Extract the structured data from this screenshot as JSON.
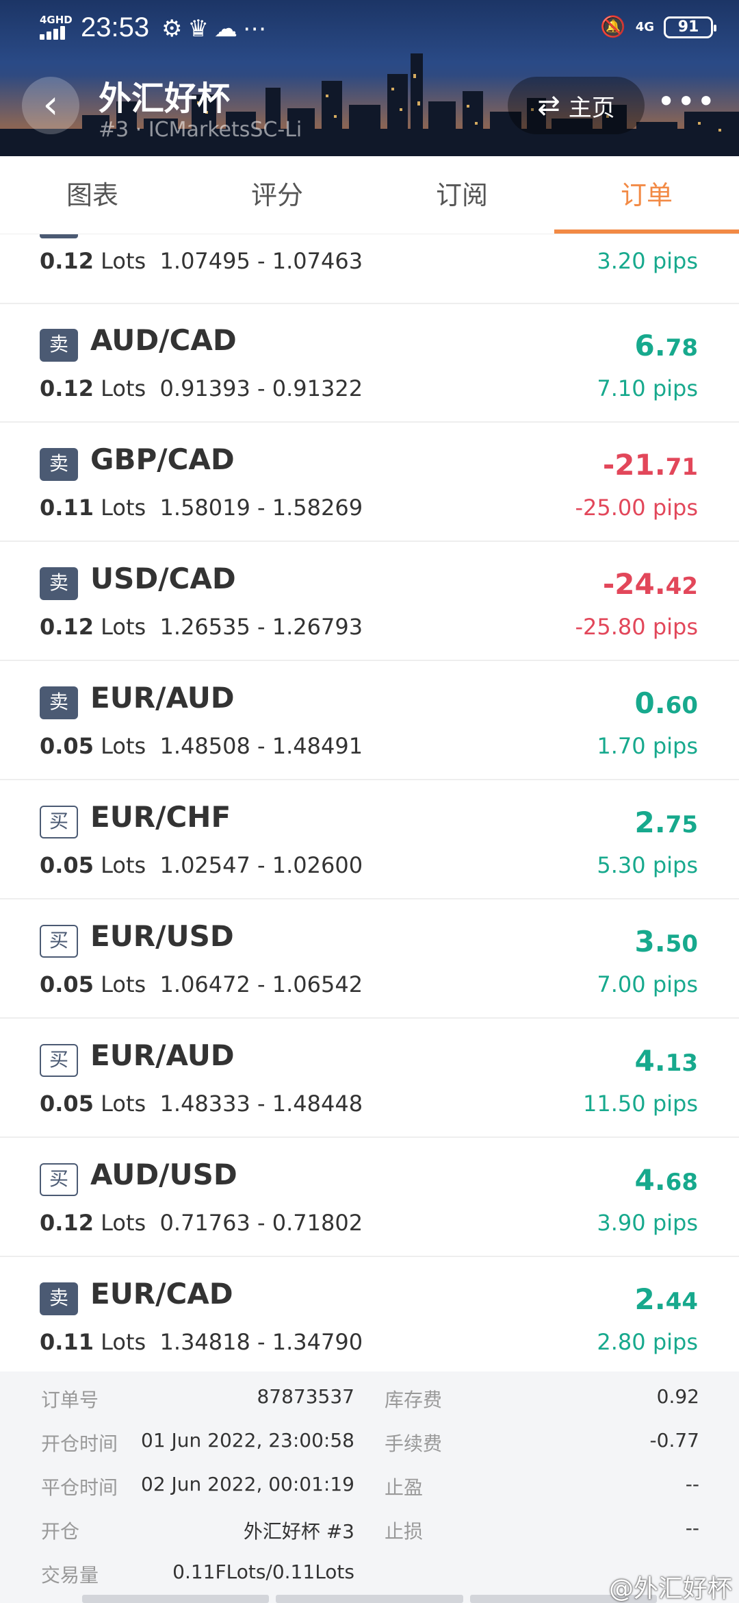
{
  "statusbar": {
    "network": "4GHD",
    "time": "23:53",
    "mobile": "4G",
    "battery": "91"
  },
  "header": {
    "title": "外汇好杯",
    "subtitle": "#3 · ICMarketsSC-Li",
    "home_label": "主页"
  },
  "tabs": [
    {
      "label": "图表"
    },
    {
      "label": "评分"
    },
    {
      "label": "订阅"
    },
    {
      "label": "订单"
    }
  ],
  "partial_row": {
    "lots": "0.12",
    "lots_unit": "Lots",
    "prices": "1.07495 - 1.07463",
    "pips": "3.20 pips"
  },
  "orders": [
    {
      "side": "卖",
      "type": "sell",
      "pair": "AUD/CAD",
      "lots": "0.12",
      "lots_unit": "Lots",
      "prices": "0.91393 - 0.91322",
      "profit_int": "6.",
      "profit_dec": "78",
      "pips": "7.10 pips",
      "sign": "pos"
    },
    {
      "side": "卖",
      "type": "sell",
      "pair": "GBP/CAD",
      "lots": "0.11",
      "lots_unit": "Lots",
      "prices": "1.58019 - 1.58269",
      "profit_int": "-21.",
      "profit_dec": "71",
      "pips": "-25.00 pips",
      "sign": "neg"
    },
    {
      "side": "卖",
      "type": "sell",
      "pair": "USD/CAD",
      "lots": "0.12",
      "lots_unit": "Lots",
      "prices": "1.26535 - 1.26793",
      "profit_int": "-24.",
      "profit_dec": "42",
      "pips": "-25.80 pips",
      "sign": "neg"
    },
    {
      "side": "卖",
      "type": "sell",
      "pair": "EUR/AUD",
      "lots": "0.05",
      "lots_unit": "Lots",
      "prices": "1.48508 - 1.48491",
      "profit_int": "0.",
      "profit_dec": "60",
      "pips": "1.70 pips",
      "sign": "pos"
    },
    {
      "side": "买",
      "type": "buy",
      "pair": "EUR/CHF",
      "lots": "0.05",
      "lots_unit": "Lots",
      "prices": "1.02547 - 1.02600",
      "profit_int": "2.",
      "profit_dec": "75",
      "pips": "5.30 pips",
      "sign": "pos"
    },
    {
      "side": "买",
      "type": "buy",
      "pair": "EUR/USD",
      "lots": "0.05",
      "lots_unit": "Lots",
      "prices": "1.06472 - 1.06542",
      "profit_int": "3.",
      "profit_dec": "50",
      "pips": "7.00 pips",
      "sign": "pos"
    },
    {
      "side": "买",
      "type": "buy",
      "pair": "EUR/AUD",
      "lots": "0.05",
      "lots_unit": "Lots",
      "prices": "1.48333 - 1.48448",
      "profit_int": "4.",
      "profit_dec": "13",
      "pips": "11.50 pips",
      "sign": "pos"
    },
    {
      "side": "买",
      "type": "buy",
      "pair": "AUD/USD",
      "lots": "0.12",
      "lots_unit": "Lots",
      "prices": "0.71763 - 0.71802",
      "profit_int": "4.",
      "profit_dec": "68",
      "pips": "3.90 pips",
      "sign": "pos"
    },
    {
      "side": "卖",
      "type": "sell",
      "pair": "EUR/CAD",
      "lots": "0.11",
      "lots_unit": "Lots",
      "prices": "1.34818 - 1.34790",
      "profit_int": "2.",
      "profit_dec": "44",
      "pips": "2.80 pips",
      "sign": "pos"
    }
  ],
  "detail": {
    "order_no_label": "订单号",
    "order_no": "87873537",
    "swap_label": "库存费",
    "swap": "0.92",
    "open_time_label": "开仓时间",
    "open_time": "01 Jun 2022, 23:00:58",
    "commission_label": "手续费",
    "commission": "-0.77",
    "close_time_label": "平仓时间",
    "close_time": "02 Jun 2022, 00:01:19",
    "tp_label": "止盈",
    "tp": "--",
    "open_label": "开仓",
    "open": "外汇好杯 #3",
    "sl_label": "止损",
    "sl": "--",
    "volume_label": "交易量",
    "volume": "0.11FLots/0.11Lots"
  },
  "watermark": "@外汇好杯",
  "colors": {
    "accent": "#f28a45",
    "positive": "#17a98d",
    "negative": "#e2475a",
    "badge": "#4b5a73"
  }
}
